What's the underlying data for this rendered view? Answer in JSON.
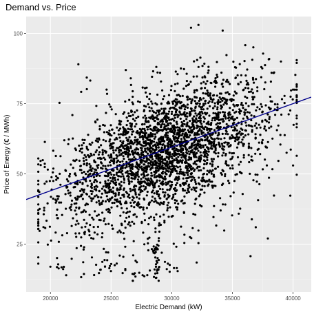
{
  "chart_data": {
    "type": "scatter",
    "title": "Demand vs. Price",
    "xlabel": "Electric Demand (kW)",
    "ylabel": "Price of Energy (€ / MWh)",
    "xlim": [
      18000,
      41500
    ],
    "ylim": [
      8,
      106
    ],
    "x_ticks": [
      20000,
      25000,
      30000,
      35000,
      40000
    ],
    "x_tick_labels": [
      "20000",
      "25000",
      "30000",
      "35000",
      "40000"
    ],
    "y_ticks": [
      25,
      50,
      75,
      100
    ],
    "y_tick_labels": [
      "25",
      "50",
      "75",
      "100"
    ],
    "grid": true,
    "legend": "none",
    "trend_line": {
      "slope": 0.00155,
      "intercept": 13.0,
      "color": "#00008b"
    },
    "point_color": "#000000",
    "panel_background": "#ebebeb",
    "notable_points": [
      [
        32200,
        103
      ],
      [
        34200,
        101
      ],
      [
        22300,
        89
      ],
      [
        39000,
        90
      ],
      [
        20000,
        17
      ],
      [
        23600,
        14
      ],
      [
        24500,
        17
      ],
      [
        28700,
        13
      ],
      [
        28500,
        22
      ],
      [
        40000,
        53
      ],
      [
        40000,
        80
      ]
    ],
    "generated_points_note": "approx 3000 points",
    "n_points": 3000,
    "seed": 12345
  }
}
